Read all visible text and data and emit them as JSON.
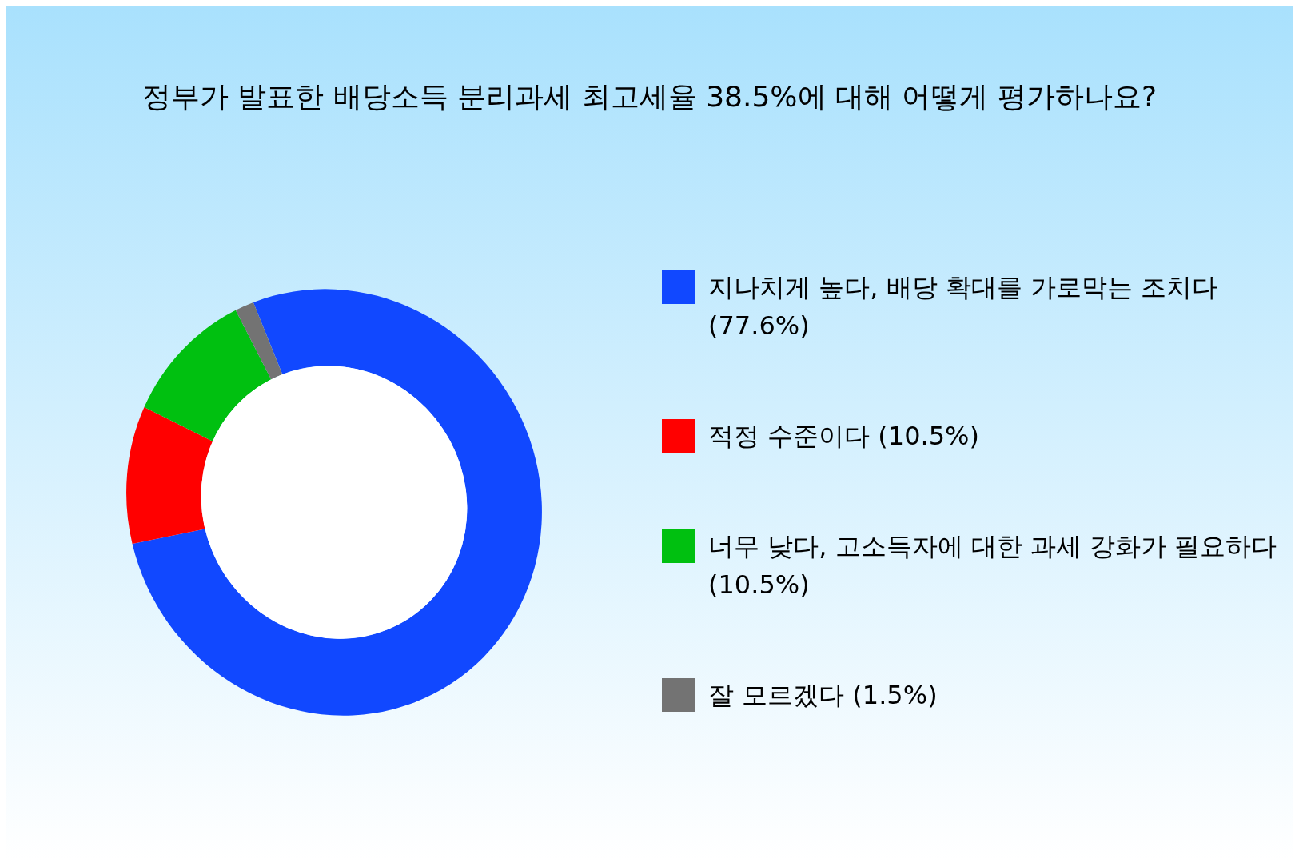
{
  "chart_data": {
    "type": "donut",
    "title": "정부가 발표한 배당소득 분리과세 최고세율 38.5%에 대해 어떻게 평가하나요?",
    "categories": [
      "지나치게 높다, 배당 확대를 가로막는 조치다 (77.6%)",
      "적정 수준이다 (10.5%)",
      "너무 낮다, 고소득자에 대한 과세 강화가 필요하다 (10.5%)",
      "잘 모르겠다 (1.5%)"
    ],
    "values": [
      77.6,
      10.5,
      10.5,
      1.5
    ],
    "colors": [
      "#1148ff",
      "#ff0000",
      "#00c010",
      "#737373"
    ],
    "legend": "right"
  }
}
